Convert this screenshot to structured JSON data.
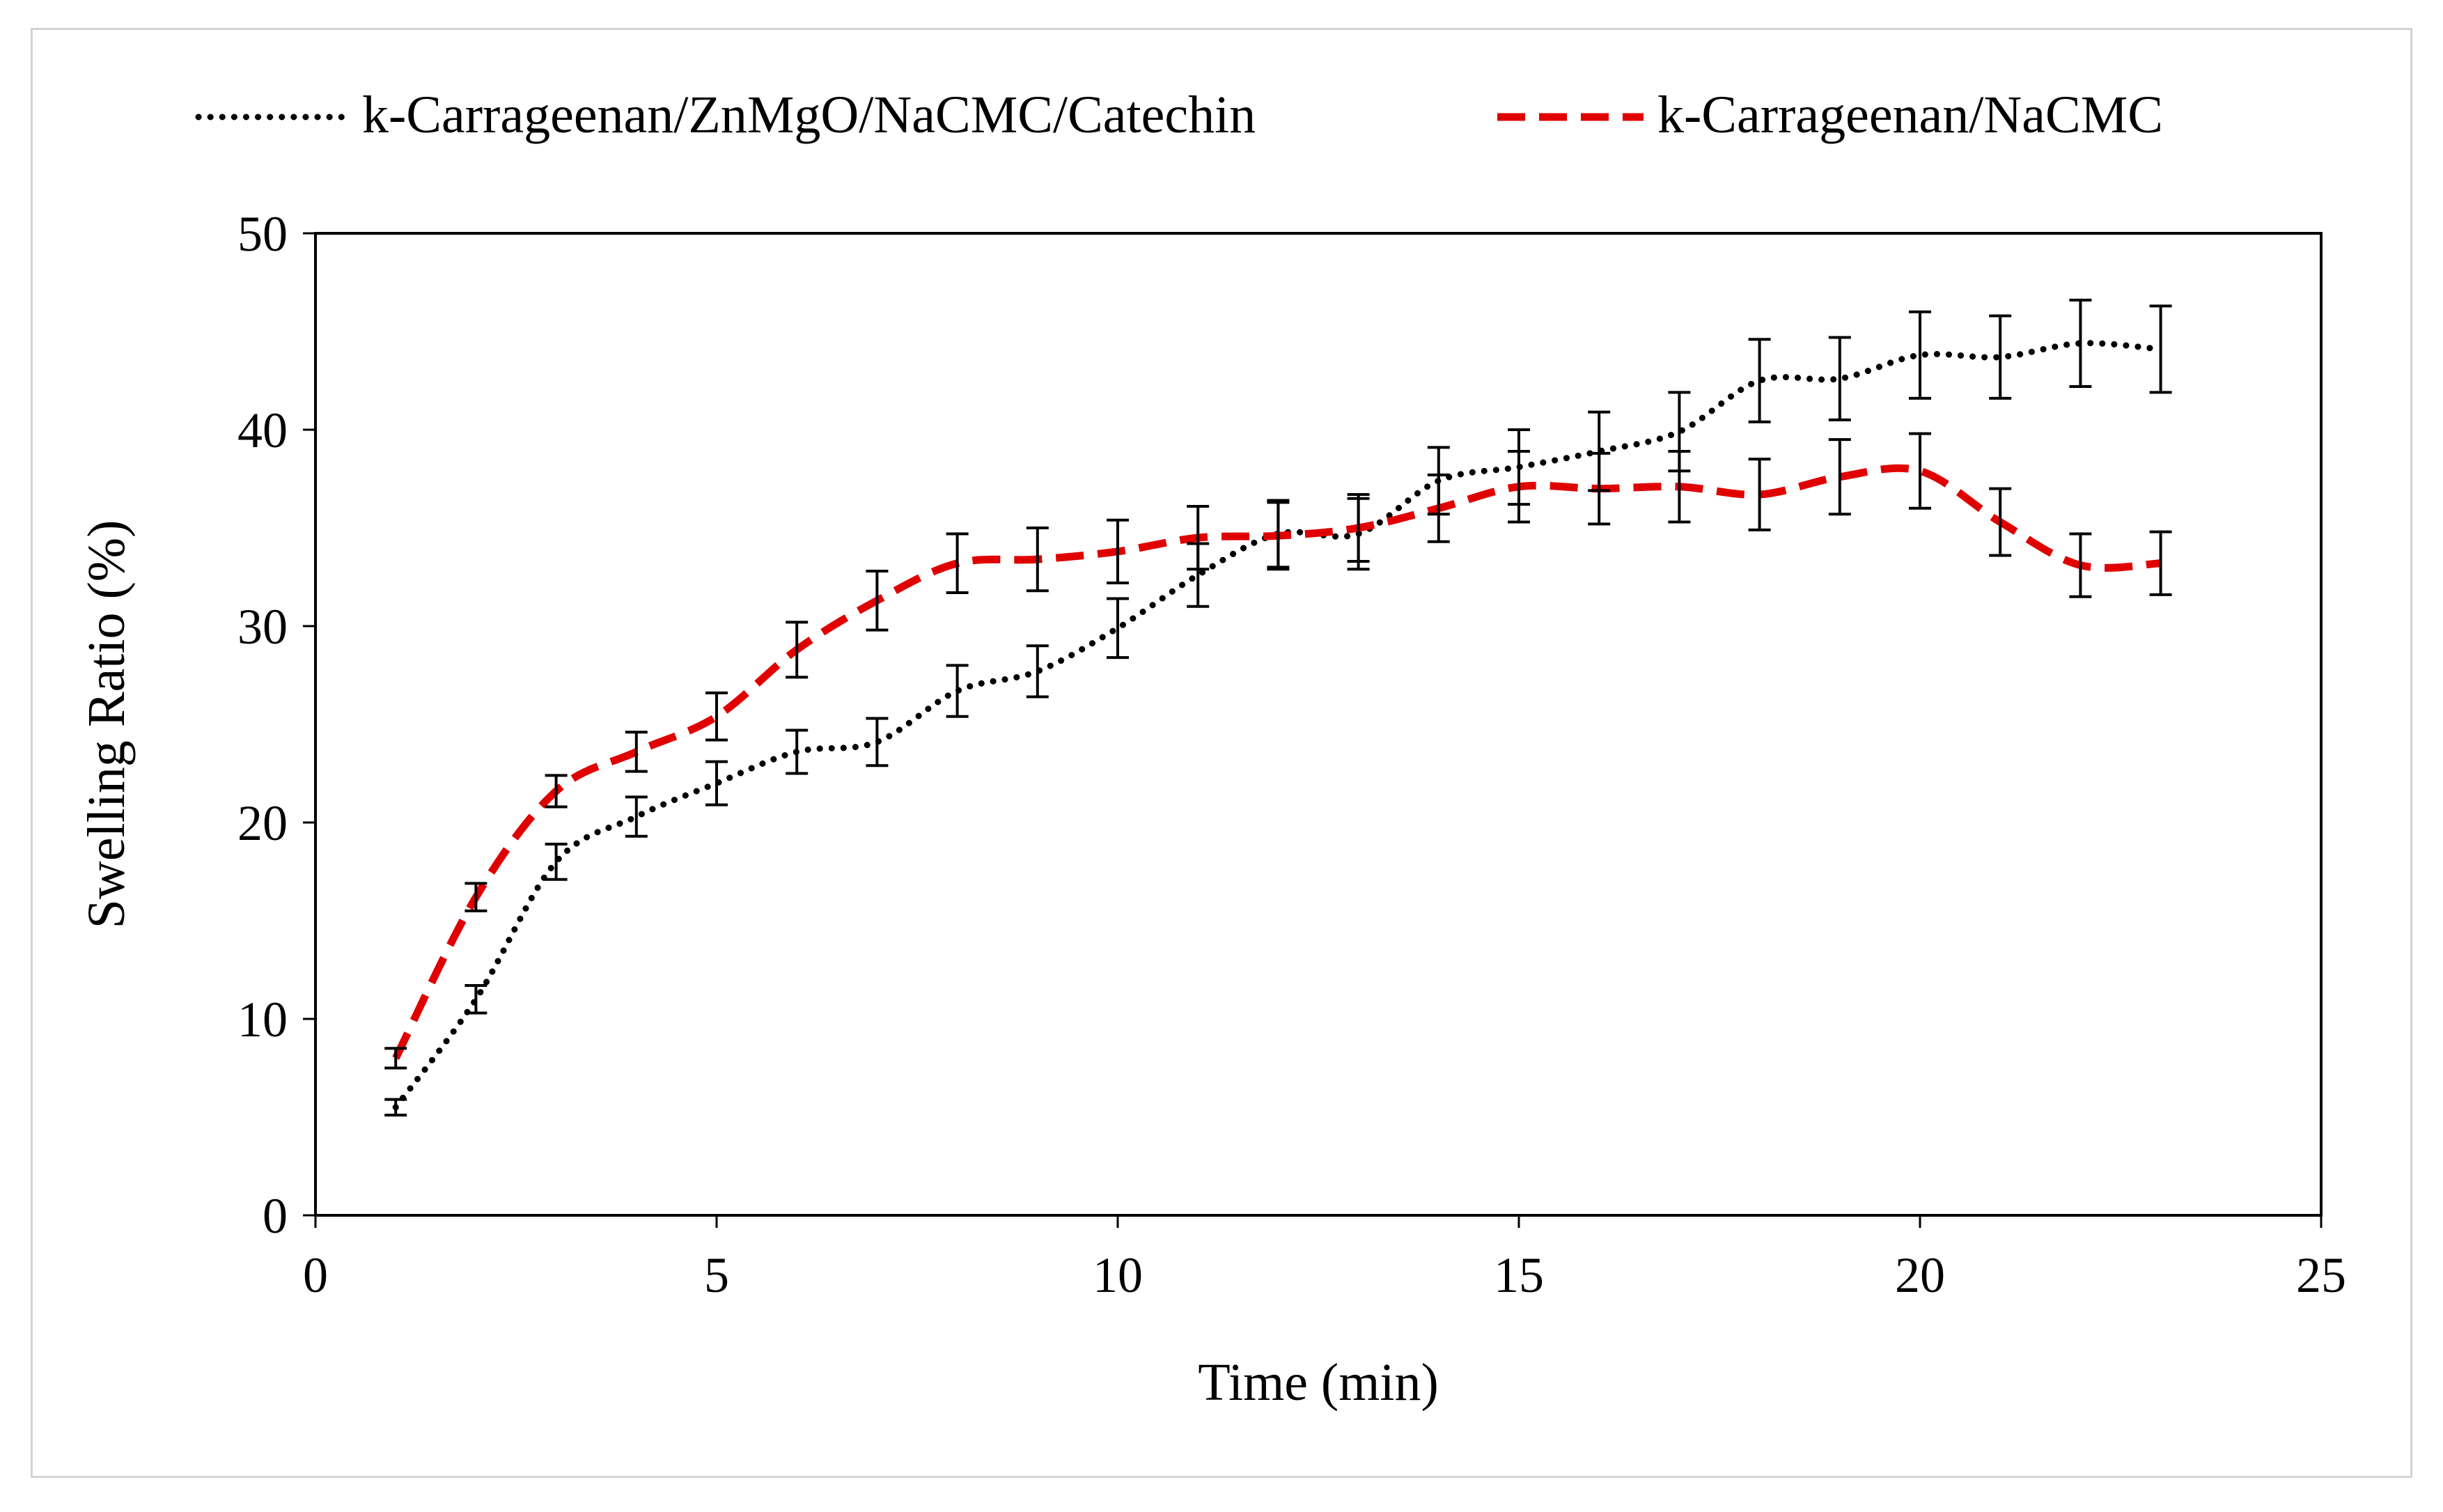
{
  "colors": {
    "series1": "#000000",
    "series2": "#e00000",
    "axis": "#000000",
    "frame": "#d3d3d3",
    "background": "#ffffff"
  },
  "chart_data": {
    "type": "line",
    "title": "",
    "xlabel": "Time (min)",
    "ylabel": "Swelling Ratio (%)",
    "xlim": [
      0,
      25
    ],
    "ylim": [
      0,
      50
    ],
    "xticks": [
      0,
      5,
      10,
      15,
      20,
      25
    ],
    "yticks": [
      0,
      10,
      20,
      30,
      40,
      50
    ],
    "grid": false,
    "legend_position": "top",
    "x": [
      1,
      2,
      3,
      4,
      5,
      6,
      7,
      8,
      9,
      10,
      11,
      12,
      13,
      14,
      15,
      16,
      17,
      18,
      19,
      20,
      21,
      22,
      23
    ],
    "series": [
      {
        "name": "k-Carrageenan/ZnMgO/NaCMC/Catechin",
        "style": "dotted",
        "values": [
          5.5,
          11.0,
          18.0,
          20.3,
          22.0,
          23.6,
          24.1,
          26.7,
          27.7,
          29.9,
          32.6,
          34.7,
          34.7,
          37.4,
          38.1,
          38.9,
          39.9,
          42.5,
          42.6,
          43.8,
          43.7,
          44.4,
          44.1
        ],
        "errors": [
          0.4,
          0.7,
          0.9,
          1.0,
          1.1,
          1.1,
          1.2,
          1.3,
          1.3,
          1.5,
          1.6,
          1.7,
          1.8,
          1.7,
          1.9,
          2.0,
          2.0,
          2.1,
          2.1,
          2.2,
          2.1,
          2.2,
          2.2
        ]
      },
      {
        "name": "k-Carrageenan/NaCMC",
        "style": "dashed",
        "values": [
          8.0,
          16.2,
          21.6,
          23.6,
          25.4,
          28.8,
          31.3,
          33.2,
          33.4,
          33.8,
          34.5,
          34.6,
          35.0,
          36.0,
          37.1,
          37.0,
          37.1,
          36.7,
          37.6,
          37.9,
          35.3,
          33.1,
          33.2
        ],
        "errors": [
          0.5,
          0.7,
          0.8,
          1.0,
          1.2,
          1.4,
          1.5,
          1.5,
          1.6,
          1.6,
          1.6,
          1.7,
          1.7,
          1.7,
          1.8,
          1.8,
          1.8,
          1.8,
          1.9,
          1.9,
          1.7,
          1.6,
          1.6
        ]
      }
    ]
  }
}
